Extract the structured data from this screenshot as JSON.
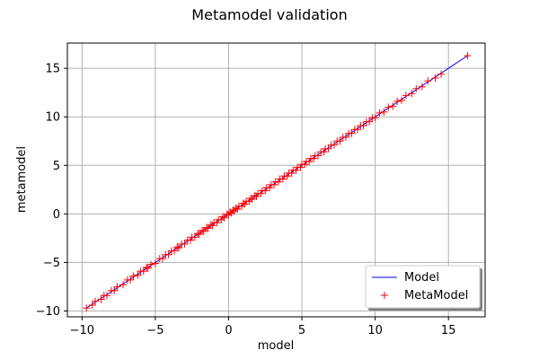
{
  "chart_data": {
    "type": "scatter",
    "title": "Metamodel validation",
    "xlabel": "model",
    "ylabel": "metamodel",
    "xlim": [
      -11,
      17.5
    ],
    "ylim": [
      -10.6,
      17.6
    ],
    "xticks": [
      -10,
      -5,
      0,
      5,
      10,
      15
    ],
    "yticks": [
      -10,
      -5,
      0,
      5,
      10,
      15
    ],
    "xtick_labels": [
      "−10",
      "−5",
      "0",
      "5",
      "10",
      "15"
    ],
    "ytick_labels": [
      "−10",
      "−5",
      "0",
      "5",
      "10",
      "15"
    ],
    "grid": true,
    "legend_position": "lower-right",
    "colors": {
      "model_line": "#0000ff",
      "metamodel_points": "#ff0000",
      "grid": "#b0b0b0",
      "axes": "#000000"
    },
    "series": [
      {
        "name": "Model",
        "kind": "line",
        "x": [
          -9.7,
          16.3
        ],
        "y": [
          -9.7,
          16.3
        ]
      },
      {
        "name": "MetaModel",
        "kind": "scatter",
        "marker": "+",
        "x": [
          -9.7,
          -9.3,
          -9.1,
          -8.7,
          -8.5,
          -8.3,
          -8.0,
          -7.8,
          -7.6,
          -7.2,
          -6.9,
          -6.7,
          -6.5,
          -6.2,
          -6.0,
          -5.8,
          -5.6,
          -5.5,
          -5.3,
          -5.0,
          -4.7,
          -4.5,
          -4.3,
          -4.1,
          -3.9,
          -3.7,
          -3.5,
          -3.4,
          -3.2,
          -3.0,
          -2.8,
          -2.6,
          -2.5,
          -2.3,
          -2.1,
          -2.0,
          -1.8,
          -1.7,
          -1.5,
          -1.4,
          -1.2,
          -1.1,
          -1.0,
          -0.8,
          -0.7,
          -0.5,
          -0.4,
          -0.3,
          -0.1,
          0.0,
          0.1,
          0.2,
          0.3,
          0.4,
          0.5,
          0.6,
          0.7,
          0.9,
          1.0,
          1.1,
          1.2,
          1.4,
          1.5,
          1.6,
          1.8,
          1.9,
          2.0,
          2.2,
          2.3,
          2.5,
          2.6,
          2.8,
          2.9,
          3.1,
          3.2,
          3.4,
          3.5,
          3.7,
          3.8,
          4.0,
          4.1,
          4.3,
          4.4,
          4.6,
          4.7,
          4.9,
          5.0,
          5.2,
          5.3,
          5.5,
          5.6,
          5.8,
          5.9,
          6.1,
          6.3,
          6.5,
          6.6,
          6.8,
          7.0,
          7.2,
          7.4,
          7.6,
          7.8,
          8.0,
          8.2,
          8.4,
          8.6,
          8.8,
          9.0,
          9.2,
          9.4,
          9.6,
          9.8,
          10.0,
          10.3,
          10.6,
          10.9,
          11.2,
          11.5,
          11.8,
          12.1,
          12.5,
          12.8,
          13.2,
          13.6,
          14.1,
          14.5,
          16.3
        ],
        "y": [
          -9.7,
          -9.4,
          -9.0,
          -8.8,
          -8.4,
          -8.4,
          -7.9,
          -7.9,
          -7.5,
          -7.3,
          -6.8,
          -6.8,
          -6.4,
          -6.3,
          -5.9,
          -5.9,
          -5.5,
          -5.6,
          -5.2,
          -5.1,
          -4.6,
          -4.6,
          -4.2,
          -4.2,
          -3.8,
          -3.8,
          -3.4,
          -3.5,
          -3.1,
          -3.1,
          -2.7,
          -2.7,
          -2.4,
          -2.4,
          -2.0,
          -2.1,
          -1.7,
          -1.8,
          -1.4,
          -1.5,
          -1.1,
          -1.2,
          -0.9,
          -0.9,
          -0.6,
          -0.6,
          -0.3,
          -0.4,
          0.0,
          -0.1,
          0.2,
          0.1,
          0.4,
          0.3,
          0.6,
          0.5,
          0.8,
          0.8,
          1.1,
          1.0,
          1.3,
          1.3,
          1.6,
          1.5,
          1.9,
          1.8,
          2.1,
          2.1,
          2.4,
          2.4,
          2.7,
          2.7,
          3.0,
          3.0,
          3.3,
          3.3,
          3.6,
          3.6,
          3.9,
          3.9,
          4.2,
          4.2,
          4.5,
          4.5,
          4.8,
          4.8,
          5.1,
          5.1,
          5.4,
          5.4,
          5.7,
          5.7,
          6.0,
          6.0,
          6.4,
          6.4,
          6.7,
          6.7,
          7.1,
          7.1,
          7.5,
          7.5,
          7.9,
          7.9,
          8.3,
          8.3,
          8.7,
          8.7,
          9.1,
          9.1,
          9.5,
          9.5,
          9.9,
          9.9,
          10.4,
          10.5,
          11.0,
          11.1,
          11.6,
          11.7,
          12.2,
          12.4,
          12.9,
          13.1,
          13.7,
          14.0,
          14.4,
          16.3
        ]
      }
    ]
  }
}
